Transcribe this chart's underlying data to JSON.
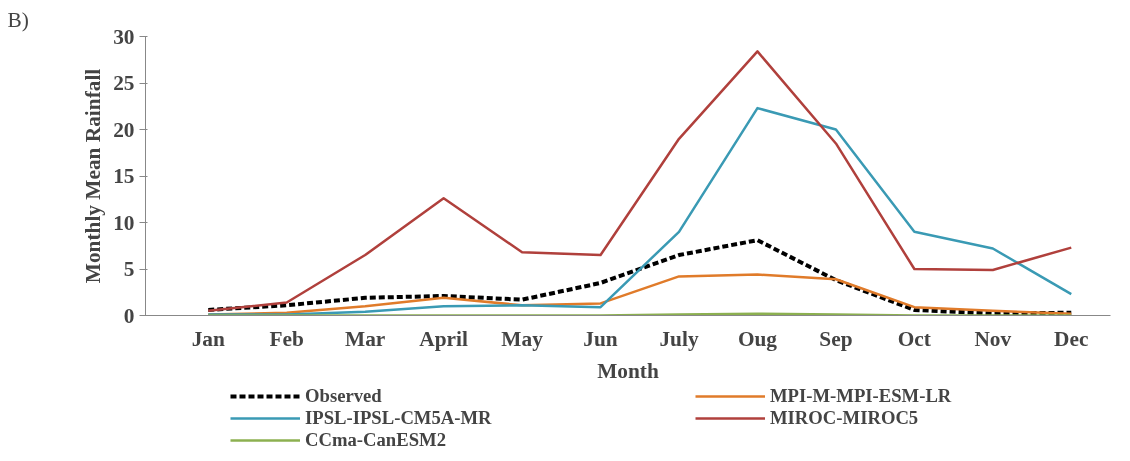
{
  "chart_data": {
    "type": "line",
    "xlabel": "Month",
    "ylabel": "Monthly Mean Rainfall",
    "annotations": [
      "B)"
    ],
    "categories": [
      "Jan",
      "Feb",
      "Mar",
      "April",
      "May",
      "Jun",
      "July",
      "Oug",
      "Sep",
      "Oct",
      "Nov",
      "Dec"
    ],
    "ylim": [
      0,
      30
    ],
    "yticks": [
      0,
      5,
      10,
      15,
      20,
      25,
      30
    ],
    "grid": false,
    "legend": "bottom",
    "marker": "none",
    "series": [
      {
        "name": "Observed",
        "color": "#000000",
        "line_style": "dashed",
        "values": [
          0.6,
          1.1,
          1.9,
          2.1,
          1.7,
          3.5,
          6.5,
          8.1,
          3.8,
          0.6,
          0.2,
          0.3
        ]
      },
      {
        "name": "MPI-M-MPI-ESM-LR",
        "color": "#e07b2a",
        "line_style": "solid",
        "values": [
          0.1,
          0.3,
          1.0,
          1.9,
          1.1,
          1.3,
          4.2,
          4.4,
          3.9,
          0.9,
          0.5,
          0.2
        ]
      },
      {
        "name": "IPSL-IPSL-CM5A-MR",
        "color": "#3a9ab4",
        "line_style": "solid",
        "values": [
          0.1,
          0.1,
          0.4,
          1.0,
          1.1,
          0.9,
          9.0,
          22.3,
          20.0,
          9.0,
          7.2,
          2.3
        ]
      },
      {
        "name": "MIROC-MIROC5",
        "color": "#b0403c",
        "line_style": "solid",
        "values": [
          0.5,
          1.4,
          6.5,
          12.6,
          6.8,
          6.5,
          19.0,
          28.4,
          18.5,
          5.0,
          4.9,
          7.3
        ]
      },
      {
        "name": "CCma-CanESM2",
        "color": "#8cb050",
        "line_style": "solid",
        "values": [
          0,
          0,
          0,
          0,
          0,
          0,
          0.1,
          0.2,
          0.1,
          0,
          0,
          0
        ]
      }
    ]
  }
}
